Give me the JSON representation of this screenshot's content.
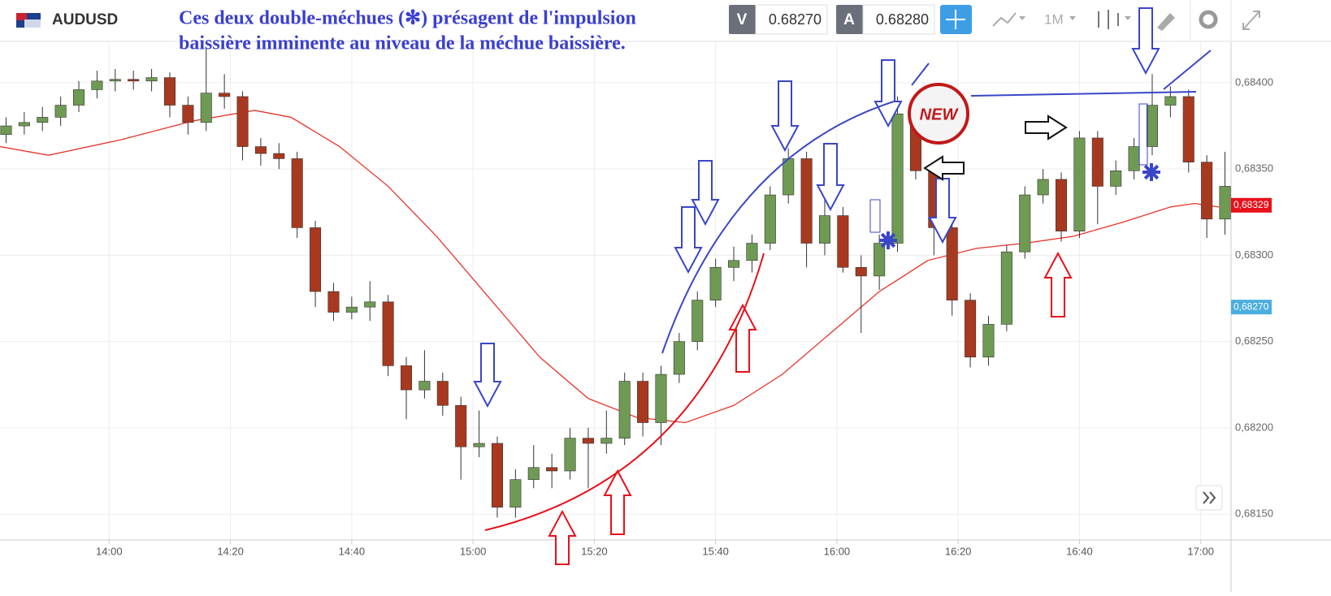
{
  "toolbar": {
    "symbol": "AUDUSD",
    "bid_label": "V",
    "bid": "0.68270",
    "ask_label": "A",
    "ask": "0.68280",
    "timeframe": "1M"
  },
  "annotation": {
    "line1": "Ces deux double-méchues (✻) présagent de l'impulsion",
    "line2": "baissière imminente au niveau de la méchue baissière.",
    "badge": "NEW"
  },
  "chart_data": {
    "type": "candlestick",
    "x": [
      823,
      826,
      829,
      832,
      835,
      838,
      841,
      844,
      847,
      850,
      853,
      856,
      859,
      862,
      865,
      868,
      871,
      874,
      877,
      880,
      883,
      886,
      889,
      892,
      895,
      898,
      901,
      904,
      907,
      910,
      913,
      916,
      919,
      922,
      925,
      928,
      931,
      934,
      937,
      940,
      943,
      946,
      949,
      952,
      955,
      958,
      961,
      964,
      967,
      970,
      973,
      976,
      979,
      982,
      985,
      988,
      991,
      994,
      997,
      1000,
      1003,
      1006,
      1009,
      1012,
      1015,
      1018,
      1021,
      1024
    ],
    "open": [
      0.6837,
      0.68375,
      0.68377,
      0.6838,
      0.68387,
      0.68396,
      0.68401,
      0.68402,
      0.68401,
      0.68403,
      0.68387,
      0.68377,
      0.68394,
      0.68392,
      0.68363,
      0.68359,
      0.68356,
      0.68316,
      0.68279,
      0.68267,
      0.6827,
      0.68273,
      0.68236,
      0.68222,
      0.68227,
      0.68213,
      0.68189,
      0.68191,
      0.68154,
      0.6817,
      0.68177,
      0.68175,
      0.68194,
      0.68191,
      0.68194,
      0.68227,
      0.68203,
      0.68231,
      0.6825,
      0.68274,
      0.68293,
      0.68297,
      0.68307,
      0.68335,
      0.68356,
      0.68307,
      0.68323,
      0.68293,
      0.68288,
      0.68307,
      0.68382,
      0.68349,
      0.68316,
      0.68274,
      0.68241,
      0.6826,
      0.68302,
      0.68335,
      0.68344,
      0.68314,
      0.68368,
      0.6834,
      0.68349,
      0.68363,
      0.68387,
      0.68392,
      0.68354,
      0.68321
    ],
    "high": [
      0.6838,
      0.68383,
      0.68386,
      0.68392,
      0.68401,
      0.68407,
      0.68408,
      0.68407,
      0.68408,
      0.68406,
      0.68392,
      0.6842,
      0.68405,
      0.68395,
      0.68368,
      0.68365,
      0.6836,
      0.6832,
      0.68284,
      0.68276,
      0.68285,
      0.68277,
      0.68241,
      0.68245,
      0.68232,
      0.68218,
      0.6821,
      0.68195,
      0.68176,
      0.6819,
      0.68185,
      0.682,
      0.682,
      0.6821,
      0.68232,
      0.68232,
      0.68236,
      0.68255,
      0.68279,
      0.68298,
      0.68305,
      0.68312,
      0.6834,
      0.68362,
      0.6836,
      0.68335,
      0.68328,
      0.683,
      0.68312,
      0.68392,
      0.68387,
      0.68353,
      0.6832,
      0.68278,
      0.68265,
      0.68306,
      0.6834,
      0.6835,
      0.68348,
      0.68372,
      0.68372,
      0.68355,
      0.68368,
      0.68405,
      0.68398,
      0.68396,
      0.68358,
      0.6836
    ],
    "low": [
      0.68365,
      0.6837,
      0.68372,
      0.68375,
      0.68383,
      0.68391,
      0.68395,
      0.68396,
      0.68395,
      0.6838,
      0.6837,
      0.68372,
      0.68385,
      0.68355,
      0.68352,
      0.6835,
      0.6831,
      0.6827,
      0.68262,
      0.68263,
      0.68262,
      0.6823,
      0.68205,
      0.68217,
      0.68207,
      0.6817,
      0.68183,
      0.68148,
      0.68148,
      0.68165,
      0.68165,
      0.6817,
      0.68165,
      0.68185,
      0.6819,
      0.68195,
      0.6819,
      0.68226,
      0.68245,
      0.6827,
      0.68285,
      0.6829,
      0.68303,
      0.6833,
      0.68293,
      0.683,
      0.6829,
      0.68255,
      0.6828,
      0.68302,
      0.68344,
      0.683,
      0.68265,
      0.68235,
      0.68236,
      0.68256,
      0.68298,
      0.6833,
      0.68308,
      0.6831,
      0.68318,
      0.68335,
      0.68344,
      0.68358,
      0.6838,
      0.68348,
      0.6831,
      0.68312
    ],
    "close": [
      0.68375,
      0.68377,
      0.6838,
      0.68387,
      0.68396,
      0.68401,
      0.68402,
      0.68401,
      0.68403,
      0.68387,
      0.68377,
      0.68394,
      0.68392,
      0.68363,
      0.68359,
      0.68356,
      0.68316,
      0.68279,
      0.68267,
      0.6827,
      0.68273,
      0.68236,
      0.68222,
      0.68227,
      0.68213,
      0.68189,
      0.68191,
      0.68154,
      0.6817,
      0.68177,
      0.68175,
      0.68194,
      0.68191,
      0.68194,
      0.68227,
      0.68203,
      0.68231,
      0.6825,
      0.68274,
      0.68293,
      0.68297,
      0.68307,
      0.68335,
      0.68356,
      0.68307,
      0.68323,
      0.68293,
      0.68288,
      0.68307,
      0.68382,
      0.68349,
      0.68316,
      0.68274,
      0.68241,
      0.6826,
      0.68302,
      0.68335,
      0.68344,
      0.68314,
      0.68368,
      0.6834,
      0.68349,
      0.68363,
      0.68387,
      0.68392,
      0.68354,
      0.68321,
      0.6834
    ],
    "up_color": "#6f9a54",
    "down_color": "#a8391f",
    "lines": [
      {
        "type": "line",
        "color": "#e8342a",
        "x": [
          822,
          830,
          842,
          854,
          864,
          870,
          878,
          886,
          894,
          903,
          911,
          919,
          927,
          935,
          943,
          951,
          959,
          967,
          975,
          983,
          991,
          999,
          1007,
          1015,
          1019,
          1023
        ],
        "values": [
          0.68363,
          0.68358,
          0.68367,
          0.68378,
          0.68384,
          0.6838,
          0.68363,
          0.6834,
          0.68311,
          0.68274,
          0.68241,
          0.68217,
          0.68206,
          0.68203,
          0.68213,
          0.68231,
          0.68255,
          0.68279,
          0.68297,
          0.68304,
          0.68307,
          0.68311,
          0.68319,
          0.68328,
          0.6833,
          0.68328
        ]
      }
    ],
    "xlim": [
      822,
      1025
    ],
    "ylim": [
      0.68135,
      0.684235
    ],
    "xticks": [
      {
        "value": 840,
        "label": "14:00"
      },
      {
        "value": 860,
        "label": "14:20"
      },
      {
        "value": 880,
        "label": "14:40"
      },
      {
        "value": 900,
        "label": "15:00"
      },
      {
        "value": 920,
        "label": "15:20"
      },
      {
        "value": 940,
        "label": "15:40"
      },
      {
        "value": 960,
        "label": "16:00"
      },
      {
        "value": 980,
        "label": "16:20"
      },
      {
        "value": 1000,
        "label": "16:40"
      },
      {
        "value": 1020,
        "label": "17:00"
      }
    ],
    "yticks": [
      {
        "value": 0.6815,
        "label": "0,68150"
      },
      {
        "value": 0.682,
        "label": "0,68200"
      },
      {
        "value": 0.6825,
        "label": "0,68250"
      },
      {
        "value": 0.683,
        "label": "0,68300"
      },
      {
        "value": 0.6835,
        "label": "0,68350"
      },
      {
        "value": 0.684,
        "label": "0,68400"
      }
    ],
    "price_tags": [
      {
        "value": 0.68329,
        "label": "0,68329",
        "color": "#e8101a"
      },
      {
        "value": 0.6827,
        "label": "0,68270",
        "color": "#4aaee0"
      }
    ],
    "grid": true
  }
}
